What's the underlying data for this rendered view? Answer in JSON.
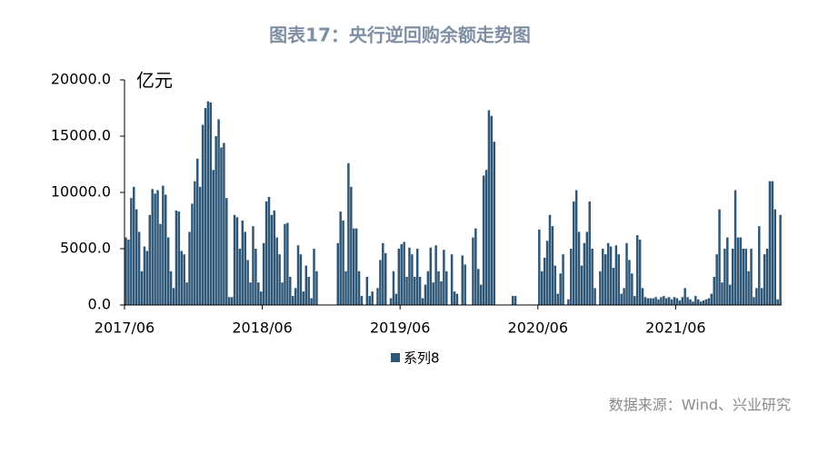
{
  "chart_data": {
    "type": "bar",
    "title": "图表17：央行逆回购余额走势图",
    "y_label": "亿元",
    "categories": [
      "2017/06",
      null,
      null,
      null,
      null,
      null,
      null,
      null,
      null,
      null,
      null,
      null,
      null,
      null,
      null,
      null,
      null,
      null,
      null,
      null,
      null,
      null,
      null,
      null,
      null,
      null,
      null,
      null,
      null,
      null,
      null,
      null,
      null,
      null,
      null,
      null,
      null,
      null,
      null,
      null,
      null,
      null,
      null,
      null,
      null,
      null,
      null,
      null,
      null,
      null,
      null,
      null,
      "2018/06",
      null,
      null,
      null,
      null,
      null,
      null,
      null,
      null,
      null,
      null,
      null,
      null,
      null,
      null,
      null,
      null,
      null,
      null,
      null,
      null,
      null,
      null,
      null,
      null,
      null,
      null,
      null,
      null,
      null,
      null,
      null,
      null,
      null,
      null,
      null,
      null,
      null,
      null,
      null,
      null,
      null,
      null,
      null,
      null,
      null,
      null,
      null,
      null,
      null,
      null,
      null,
      "2019/06",
      null,
      null,
      null,
      null,
      null,
      null,
      null,
      null,
      null,
      null,
      null,
      null,
      null,
      null,
      null,
      null,
      null,
      null,
      null,
      null,
      null,
      null,
      null,
      null,
      null,
      null,
      null,
      null,
      null,
      null,
      null,
      null,
      null,
      null,
      null,
      null,
      null,
      null,
      null,
      null,
      null,
      null,
      null,
      null,
      null,
      null,
      null,
      null,
      null,
      null,
      null,
      "2020/06",
      null,
      null,
      null,
      null,
      null,
      null,
      null,
      null,
      null,
      null,
      null,
      null,
      null,
      null,
      null,
      null,
      null,
      null,
      null,
      null,
      null,
      null,
      null,
      null,
      null,
      null,
      null,
      null,
      null,
      null,
      null,
      null,
      null,
      null,
      null,
      null,
      null,
      null,
      null,
      null,
      null,
      null,
      null,
      null,
      null,
      null,
      null,
      null,
      null,
      null,
      null,
      "2021/06",
      null,
      null,
      null,
      null,
      null,
      null,
      null,
      null,
      null,
      null,
      null,
      null,
      null,
      null,
      null,
      null,
      null,
      null,
      null,
      null,
      null,
      null,
      null,
      null,
      null,
      null,
      null,
      null,
      null,
      null,
      null,
      null,
      null,
      null,
      null,
      null,
      null,
      null,
      null
    ],
    "series": [
      {
        "name": "系列8",
        "color": "#2e5677",
        "values": [
          6000,
          5800,
          9500,
          10500,
          8500,
          6500,
          3000,
          5200,
          4800,
          8000,
          10300,
          9900,
          10200,
          7200,
          10600,
          9800,
          6000,
          3000,
          1500,
          8400,
          8300,
          4800,
          4500,
          2000,
          6500,
          9000,
          11000,
          13000,
          10500,
          16000,
          17500,
          18100,
          18000,
          12000,
          15000,
          16500,
          14000,
          14400,
          9500,
          700,
          700,
          8000,
          7800,
          5000,
          7500,
          6500,
          4000,
          2000,
          7000,
          5000,
          2000,
          1200,
          5500,
          9200,
          9600,
          8000,
          8400,
          6000,
          4500,
          2000,
          7200,
          7300,
          2500,
          800,
          1500,
          5300,
          4500,
          1200,
          3500,
          2500,
          600,
          5000,
          3000,
          0,
          0,
          0,
          0,
          0,
          0,
          0,
          5500,
          8300,
          7500,
          3000,
          12600,
          10500,
          6800,
          6800,
          3000,
          800,
          0,
          2500,
          800,
          1200,
          0,
          1500,
          4000,
          5500,
          4600,
          0,
          600,
          3000,
          1000,
          5000,
          5400,
          5600,
          2500,
          5100,
          4500,
          2500,
          5000,
          2500,
          600,
          1800,
          3000,
          5100,
          2000,
          5300,
          3000,
          2100,
          4900,
          3000,
          0,
          4500,
          1200,
          1000,
          0,
          4400,
          3600,
          0,
          0,
          6000,
          6800,
          3200,
          1800,
          11500,
          12000,
          17300,
          16800,
          14500,
          0,
          0,
          0,
          0,
          0,
          0,
          800,
          800,
          0,
          0,
          0,
          0,
          0,
          0,
          0,
          0,
          6700,
          3000,
          4200,
          5700,
          8000,
          7000,
          3500,
          1000,
          2800,
          4500,
          0,
          500,
          5000,
          9200,
          10200,
          6500,
          3500,
          5500,
          6500,
          9200,
          5000,
          1500,
          0,
          3000,
          5000,
          4500,
          5500,
          5200,
          3300,
          5300,
          4500,
          1000,
          1500,
          5500,
          4000,
          2800,
          800,
          6200,
          5800,
          1500,
          700,
          600,
          600,
          600,
          700,
          500,
          700,
          800,
          600,
          700,
          500,
          700,
          600,
          400,
          700,
          1500,
          700,
          500,
          300,
          800,
          500,
          300,
          400,
          500,
          600,
          1000,
          2500,
          4500,
          8500,
          2000,
          5000,
          6000,
          1800,
          5000,
          10200,
          6000,
          6000,
          5000,
          5000,
          3000,
          5000,
          700,
          1500,
          7000,
          1500,
          4500,
          5000,
          11000,
          11000,
          8500,
          500,
          8000
        ]
      }
    ],
    "ylim": [
      0,
      20000
    ],
    "yticks": [
      {
        "value": 0,
        "label": "0.0"
      },
      {
        "value": 5000,
        "label": "5000.0"
      },
      {
        "value": 10000,
        "label": "10000.0"
      },
      {
        "value": 15000,
        "label": "15000.0"
      },
      {
        "value": 20000,
        "label": "20000.0"
      }
    ],
    "legend": "bottom"
  },
  "source": "数据来源：Wind、兴业研究"
}
